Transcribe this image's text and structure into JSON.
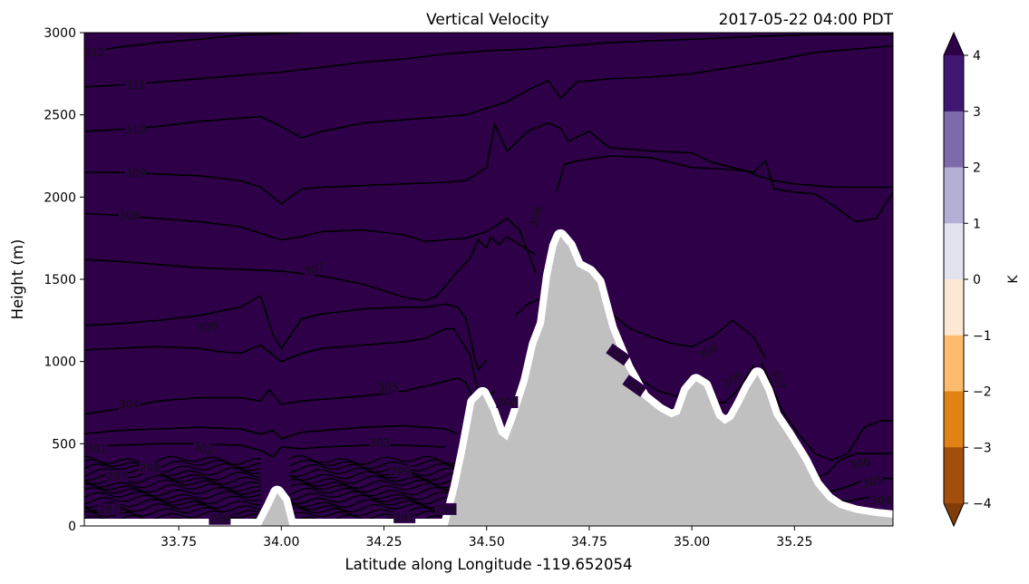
{
  "chart_data": {
    "type": "contour",
    "title": "Vertical Velocity",
    "subtitle": "2017-05-22 04:00 PDT",
    "xlabel": "Latitude along Longitude -119.652054",
    "ylabel": "Height (m)",
    "xlim": [
      33.52,
      35.49
    ],
    "ylim": [
      0,
      3000
    ],
    "xticks": [
      33.75,
      34.0,
      34.25,
      34.5,
      34.75,
      35.0,
      35.25
    ],
    "xtick_labels": [
      "33.75",
      "34.00",
      "34.25",
      "34.50",
      "34.75",
      "35.00",
      "35.25"
    ],
    "yticks": [
      0,
      500,
      1000,
      1500,
      2000,
      2500,
      3000
    ],
    "ytick_labels": [
      "0",
      "500",
      "1000",
      "1500",
      "2000",
      "2500",
      "3000"
    ],
    "fill_color": "#2d0048",
    "terrain_color": "#c0c0c0",
    "terrain": {
      "x": [
        33.52,
        33.95,
        33.975,
        33.99,
        34.005,
        34.02,
        34.405,
        34.43,
        34.45,
        34.47,
        34.49,
        34.51,
        34.53,
        34.55,
        34.57,
        34.6,
        34.62,
        34.64,
        34.655,
        34.67,
        34.68,
        34.7,
        34.72,
        34.75,
        34.77,
        34.8,
        34.84,
        34.88,
        34.92,
        34.95,
        34.97,
        34.99,
        35.01,
        35.03,
        35.06,
        35.08,
        35.1,
        35.12,
        35.14,
        35.16,
        35.18,
        35.2,
        35.23,
        35.27,
        35.3,
        35.33,
        35.36,
        35.4,
        35.45,
        35.49
      ],
      "height": [
        0,
        0,
        120,
        200,
        150,
        0,
        0,
        240,
        480,
        750,
        800,
        700,
        560,
        520,
        650,
        880,
        1100,
        1230,
        1520,
        1700,
        1760,
        1700,
        1580,
        1540,
        1480,
        1200,
        960,
        780,
        700,
        660,
        680,
        820,
        880,
        850,
        660,
        620,
        650,
        740,
        840,
        920,
        820,
        670,
        560,
        400,
        250,
        160,
        110,
        80,
        60,
        50
      ]
    },
    "colorbar": {
      "label": "K",
      "ticks": [
        "4",
        "3",
        "2",
        "1",
        "0",
        "−1",
        "−2",
        "−3",
        "−4"
      ],
      "colors": [
        "#3f1671",
        "#7d6aaa",
        "#b4afd4",
        "#e3e3ef",
        "#fde9d3",
        "#fdbc6d",
        "#e08216",
        "#a34f0b"
      ],
      "extend_top_color": "#2d0048",
      "extend_bottom_color": "#7f3b08"
    },
    "contours": [
      {
        "label": "312",
        "x": [
          33.52,
          33.6,
          33.7,
          33.8,
          33.9,
          34.05
        ],
        "y": [
          2880,
          2910,
          2940,
          2960,
          2985,
          3000
        ]
      },
      {
        "label": "311",
        "x": [
          33.52,
          33.6,
          33.7,
          33.8,
          33.9,
          34.0,
          34.1,
          34.2,
          34.3,
          34.4,
          34.5,
          34.6,
          34.7,
          34.8,
          34.9,
          35.0,
          35.1,
          35.2,
          35.3,
          35.4,
          35.49
        ],
        "y": [
          2670,
          2680,
          2700,
          2720,
          2740,
          2760,
          2790,
          2820,
          2840,
          2870,
          2890,
          2900,
          2920,
          2940,
          2950,
          2960,
          2970,
          2980,
          2990,
          2990,
          2990
        ]
      },
      {
        "label": "310",
        "x": [
          33.52,
          33.6,
          33.7,
          33.8,
          33.9,
          33.95,
          34.0,
          34.05,
          34.1,
          34.2,
          34.3,
          34.4,
          34.45,
          34.5,
          34.55,
          34.6,
          34.65,
          34.68,
          34.72,
          34.8,
          34.9,
          35.0,
          35.1,
          35.2,
          35.3,
          35.4,
          35.49
        ],
        "y": [
          2400,
          2410,
          2430,
          2460,
          2480,
          2490,
          2430,
          2360,
          2400,
          2450,
          2470,
          2490,
          2500,
          2540,
          2580,
          2650,
          2710,
          2600,
          2700,
          2720,
          2730,
          2750,
          2790,
          2830,
          2880,
          2900,
          2920
        ]
      },
      {
        "label": "309",
        "x": [
          33.52,
          33.6,
          33.7,
          33.8,
          33.9,
          33.95,
          34.0,
          34.05,
          34.1,
          34.2,
          34.3,
          34.4,
          34.45,
          34.5,
          34.52,
          34.55,
          34.6,
          34.65,
          34.68,
          34.7,
          34.75,
          34.8,
          34.9,
          35.0,
          35.05,
          35.1,
          35.15,
          35.18,
          35.2,
          35.25,
          35.3,
          35.35,
          35.4,
          35.45,
          35.49
        ],
        "y": [
          2150,
          2150,
          2140,
          2130,
          2100,
          2060,
          1960,
          2050,
          2060,
          2070,
          2080,
          2090,
          2100,
          2180,
          2440,
          2280,
          2400,
          2450,
          2420,
          2340,
          2400,
          2300,
          2280,
          2270,
          2210,
          2180,
          2150,
          2220,
          2050,
          2030,
          2020,
          1940,
          1850,
          1870,
          2030
        ]
      },
      {
        "label": "308",
        "x": [
          33.52,
          33.6,
          33.7,
          33.8,
          33.9,
          33.95,
          34.0,
          34.05,
          34.1,
          34.2,
          34.3,
          34.35,
          34.4,
          34.45,
          34.5,
          34.55,
          34.58,
          34.62
        ],
        "y": [
          1900,
          1890,
          1870,
          1850,
          1820,
          1780,
          1740,
          1760,
          1790,
          1800,
          1770,
          1730,
          1740,
          1750,
          1790,
          1870,
          1800,
          1540
        ]
      },
      {
        "label": "308",
        "x": [
          34.67,
          34.69,
          34.72,
          34.8,
          34.9,
          35.0,
          35.08,
          35.13,
          35.16,
          35.2,
          35.25,
          35.3,
          35.35,
          35.4,
          35.45,
          35.49
        ],
        "y": [
          2030,
          2200,
          2220,
          2250,
          2240,
          2180,
          2170,
          2160,
          2130,
          2100,
          2080,
          2070,
          2060,
          2060,
          2060,
          2060
        ]
      },
      {
        "label": "307",
        "x": [
          33.52,
          33.6,
          33.7,
          33.8,
          33.9,
          34.0,
          34.1,
          34.2,
          34.3,
          34.35,
          34.38,
          34.42,
          34.46,
          34.48,
          34.5,
          34.51,
          34.53,
          34.55,
          34.6,
          34.62
        ],
        "y": [
          1620,
          1610,
          1590,
          1570,
          1560,
          1550,
          1520,
          1470,
          1390,
          1370,
          1400,
          1520,
          1630,
          1740,
          1690,
          1760,
          1710,
          1760,
          1680,
          1650
        ]
      },
      {
        "label": "306",
        "x": [
          33.52,
          33.6,
          33.7,
          33.8,
          33.9,
          33.95,
          33.98,
          34.0,
          34.05,
          34.1,
          34.2,
          34.3,
          34.35,
          34.4,
          34.43,
          34.45,
          34.47,
          34.48,
          34.5
        ],
        "y": [
          1220,
          1230,
          1250,
          1280,
          1330,
          1400,
          1160,
          1080,
          1260,
          1290,
          1320,
          1330,
          1330,
          1350,
          1330,
          1260,
          1030,
          950,
          1010
        ]
      },
      {
        "label": "305",
        "x": [
          33.52,
          33.6,
          33.7,
          33.8,
          33.85,
          33.9,
          33.95,
          34.0,
          34.05,
          34.1,
          34.2,
          34.3,
          34.35,
          34.4,
          34.42,
          34.46,
          34.48,
          34.5,
          34.52
        ],
        "y": [
          1070,
          1080,
          1090,
          1080,
          1060,
          1050,
          1100,
          1000,
          1050,
          1080,
          1100,
          1120,
          1140,
          1200,
          1200,
          1040,
          800,
          780,
          820
        ]
      },
      {
        "label": "306",
        "x": [
          34.57,
          34.6,
          34.65,
          34.7,
          34.75,
          34.8,
          34.85,
          34.9,
          34.95,
          35.0,
          35.05,
          35.1,
          35.15,
          35.18
        ],
        "y": [
          1280,
          1350,
          1400,
          1420,
          1380,
          1300,
          1200,
          1150,
          1110,
          1090,
          1150,
          1250,
          1150,
          1020
        ]
      },
      {
        "label": "305",
        "x": [
          34.77,
          34.8,
          34.84,
          34.88,
          34.92,
          34.96,
          35.0,
          35.04,
          35.08,
          35.12,
          35.15
        ],
        "y": [
          1210,
          1100,
          960,
          880,
          820,
          790,
          800,
          760,
          750,
          850,
          980
        ]
      },
      {
        "label": "304",
        "x": [
          33.52,
          33.6,
          33.7,
          33.8,
          33.9,
          33.95,
          33.97,
          34.0,
          34.05,
          34.1,
          34.2,
          34.3,
          34.4,
          34.43,
          34.45,
          34.46,
          34.47
        ],
        "y": [
          680,
          710,
          760,
          780,
          780,
          760,
          830,
          740,
          760,
          770,
          790,
          820,
          880,
          900,
          870,
          820,
          700
        ]
      },
      {
        "label": "303",
        "x": [
          33.52,
          33.6,
          33.7,
          33.8,
          33.9,
          33.95,
          33.98,
          34.0,
          34.05,
          34.1,
          34.2,
          34.3,
          34.4,
          34.43
        ],
        "y": [
          560,
          580,
          590,
          600,
          590,
          560,
          580,
          530,
          570,
          580,
          600,
          610,
          590,
          560
        ]
      },
      {
        "label": "302",
        "x": [
          33.52,
          33.6,
          33.7,
          33.8,
          33.9,
          33.95,
          33.98,
          34.0,
          34.05,
          34.1,
          34.2,
          34.3,
          34.4
        ],
        "y": [
          480,
          490,
          500,
          500,
          490,
          460,
          420,
          480,
          470,
          480,
          490,
          490,
          480
        ]
      },
      {
        "label": "307",
        "x": [
          35.17,
          35.19,
          35.22,
          35.26,
          35.3,
          35.34,
          35.38,
          35.42,
          35.46,
          35.49
        ],
        "y": [
          990,
          880,
          700,
          560,
          440,
          400,
          440,
          600,
          640,
          640
        ]
      },
      {
        "label": "306",
        "x": [
          35.23,
          35.26,
          35.3,
          35.33,
          35.36,
          35.4,
          35.44,
          35.49
        ],
        "y": [
          390,
          340,
          290,
          320,
          400,
          440,
          440,
          440
        ]
      },
      {
        "label": "305",
        "x": [
          35.26,
          35.3,
          35.34,
          35.38,
          35.42,
          35.46,
          35.49
        ],
        "y": [
          300,
          240,
          210,
          240,
          280,
          290,
          290
        ]
      },
      {
        "label": "304",
        "x": [
          35.34,
          35.38,
          35.42,
          35.46,
          35.49
        ],
        "y": [
          160,
          150,
          170,
          180,
          180
        ]
      }
    ],
    "contour_labels": [
      {
        "text": "312",
        "x": 33.545,
        "y": 2880,
        "rot": 0
      },
      {
        "text": "311",
        "x": 33.645,
        "y": 2680,
        "rot": 0
      },
      {
        "text": "310",
        "x": 33.645,
        "y": 2410,
        "rot": 0
      },
      {
        "text": "309",
        "x": 33.645,
        "y": 2145,
        "rot": 0
      },
      {
        "text": "308",
        "x": 33.63,
        "y": 1885,
        "rot": 0
      },
      {
        "text": "307",
        "x": 34.08,
        "y": 1560,
        "rot": 15
      },
      {
        "text": "306",
        "x": 33.82,
        "y": 1210,
        "rot": 10
      },
      {
        "text": "305",
        "x": 34.26,
        "y": 840,
        "rot": 0
      },
      {
        "text": "304",
        "x": 33.63,
        "y": 740,
        "rot": 0
      },
      {
        "text": "303",
        "x": 34.24,
        "y": 505,
        "rot": 0
      },
      {
        "text": "302",
        "x": 33.81,
        "y": 470,
        "rot": -15
      },
      {
        "text": "301",
        "x": 33.55,
        "y": 470,
        "rot": 0
      },
      {
        "text": "308",
        "x": 34.62,
        "y": 1880,
        "rot": 75
      },
      {
        "text": "305",
        "x": 34.82,
        "y": 1040,
        "rot": -35
      },
      {
        "text": "306",
        "x": 35.04,
        "y": 1060,
        "rot": 30
      },
      {
        "text": "305",
        "x": 35.1,
        "y": 890,
        "rot": 30
      },
      {
        "text": "304",
        "x": 34.86,
        "y": 850,
        "rot": -35
      },
      {
        "text": "307",
        "x": 35.21,
        "y": 890,
        "rot": -70
      },
      {
        "text": "306",
        "x": 35.41,
        "y": 380,
        "rot": 15
      },
      {
        "text": "305",
        "x": 35.44,
        "y": 270,
        "rot": 15
      },
      {
        "text": "304",
        "x": 35.46,
        "y": 155,
        "rot": 0
      },
      {
        "text": "300",
        "x": 34.55,
        "y": 750,
        "rot": 0
      },
      {
        "text": "298",
        "x": 34.4,
        "y": 100,
        "rot": 0
      },
      {
        "text": "297",
        "x": 34.3,
        "y": 50,
        "rot": 0
      },
      {
        "text": "299",
        "x": 34.29,
        "y": 330,
        "rot": 0
      },
      {
        "text": "289",
        "x": 33.85,
        "y": 40,
        "rot": 0
      },
      {
        "text": "287",
        "x": 33.58,
        "y": 100,
        "rot": 0
      },
      {
        "text": "297",
        "x": 33.6,
        "y": 300,
        "rot": 0
      },
      {
        "text": "298",
        "x": 33.68,
        "y": 350,
        "rot": 0
      }
    ]
  }
}
